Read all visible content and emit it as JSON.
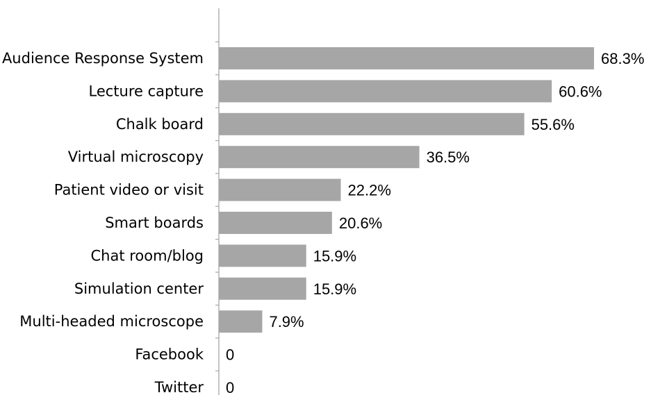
{
  "chart_data": {
    "type": "bar",
    "orientation": "horizontal",
    "categories": [
      "Audience Response System",
      "Lecture capture",
      "Chalk board",
      "Virtual microscopy",
      "Patient video or visit",
      "Smart boards",
      "Chat room/blog",
      "Simulation center",
      "Multi-headed microscope",
      "Facebook",
      "Twitter"
    ],
    "values": [
      68.3,
      60.6,
      55.6,
      36.5,
      22.2,
      20.6,
      15.9,
      15.9,
      7.9,
      0,
      0
    ],
    "value_labels": [
      "68.3%",
      "60.6%",
      "55.6%",
      "36.5%",
      "22.2%",
      "20.6%",
      "15.9%",
      "15.9%",
      "7.9%",
      "0",
      "0"
    ],
    "title": "",
    "xlabel": "",
    "ylabel": "",
    "xlim": [
      0,
      68.3
    ],
    "grid": false,
    "legend": "none",
    "colors": {
      "bar": "#a6a6a6",
      "axis": "#a6a6a6",
      "text": "#000000"
    }
  }
}
